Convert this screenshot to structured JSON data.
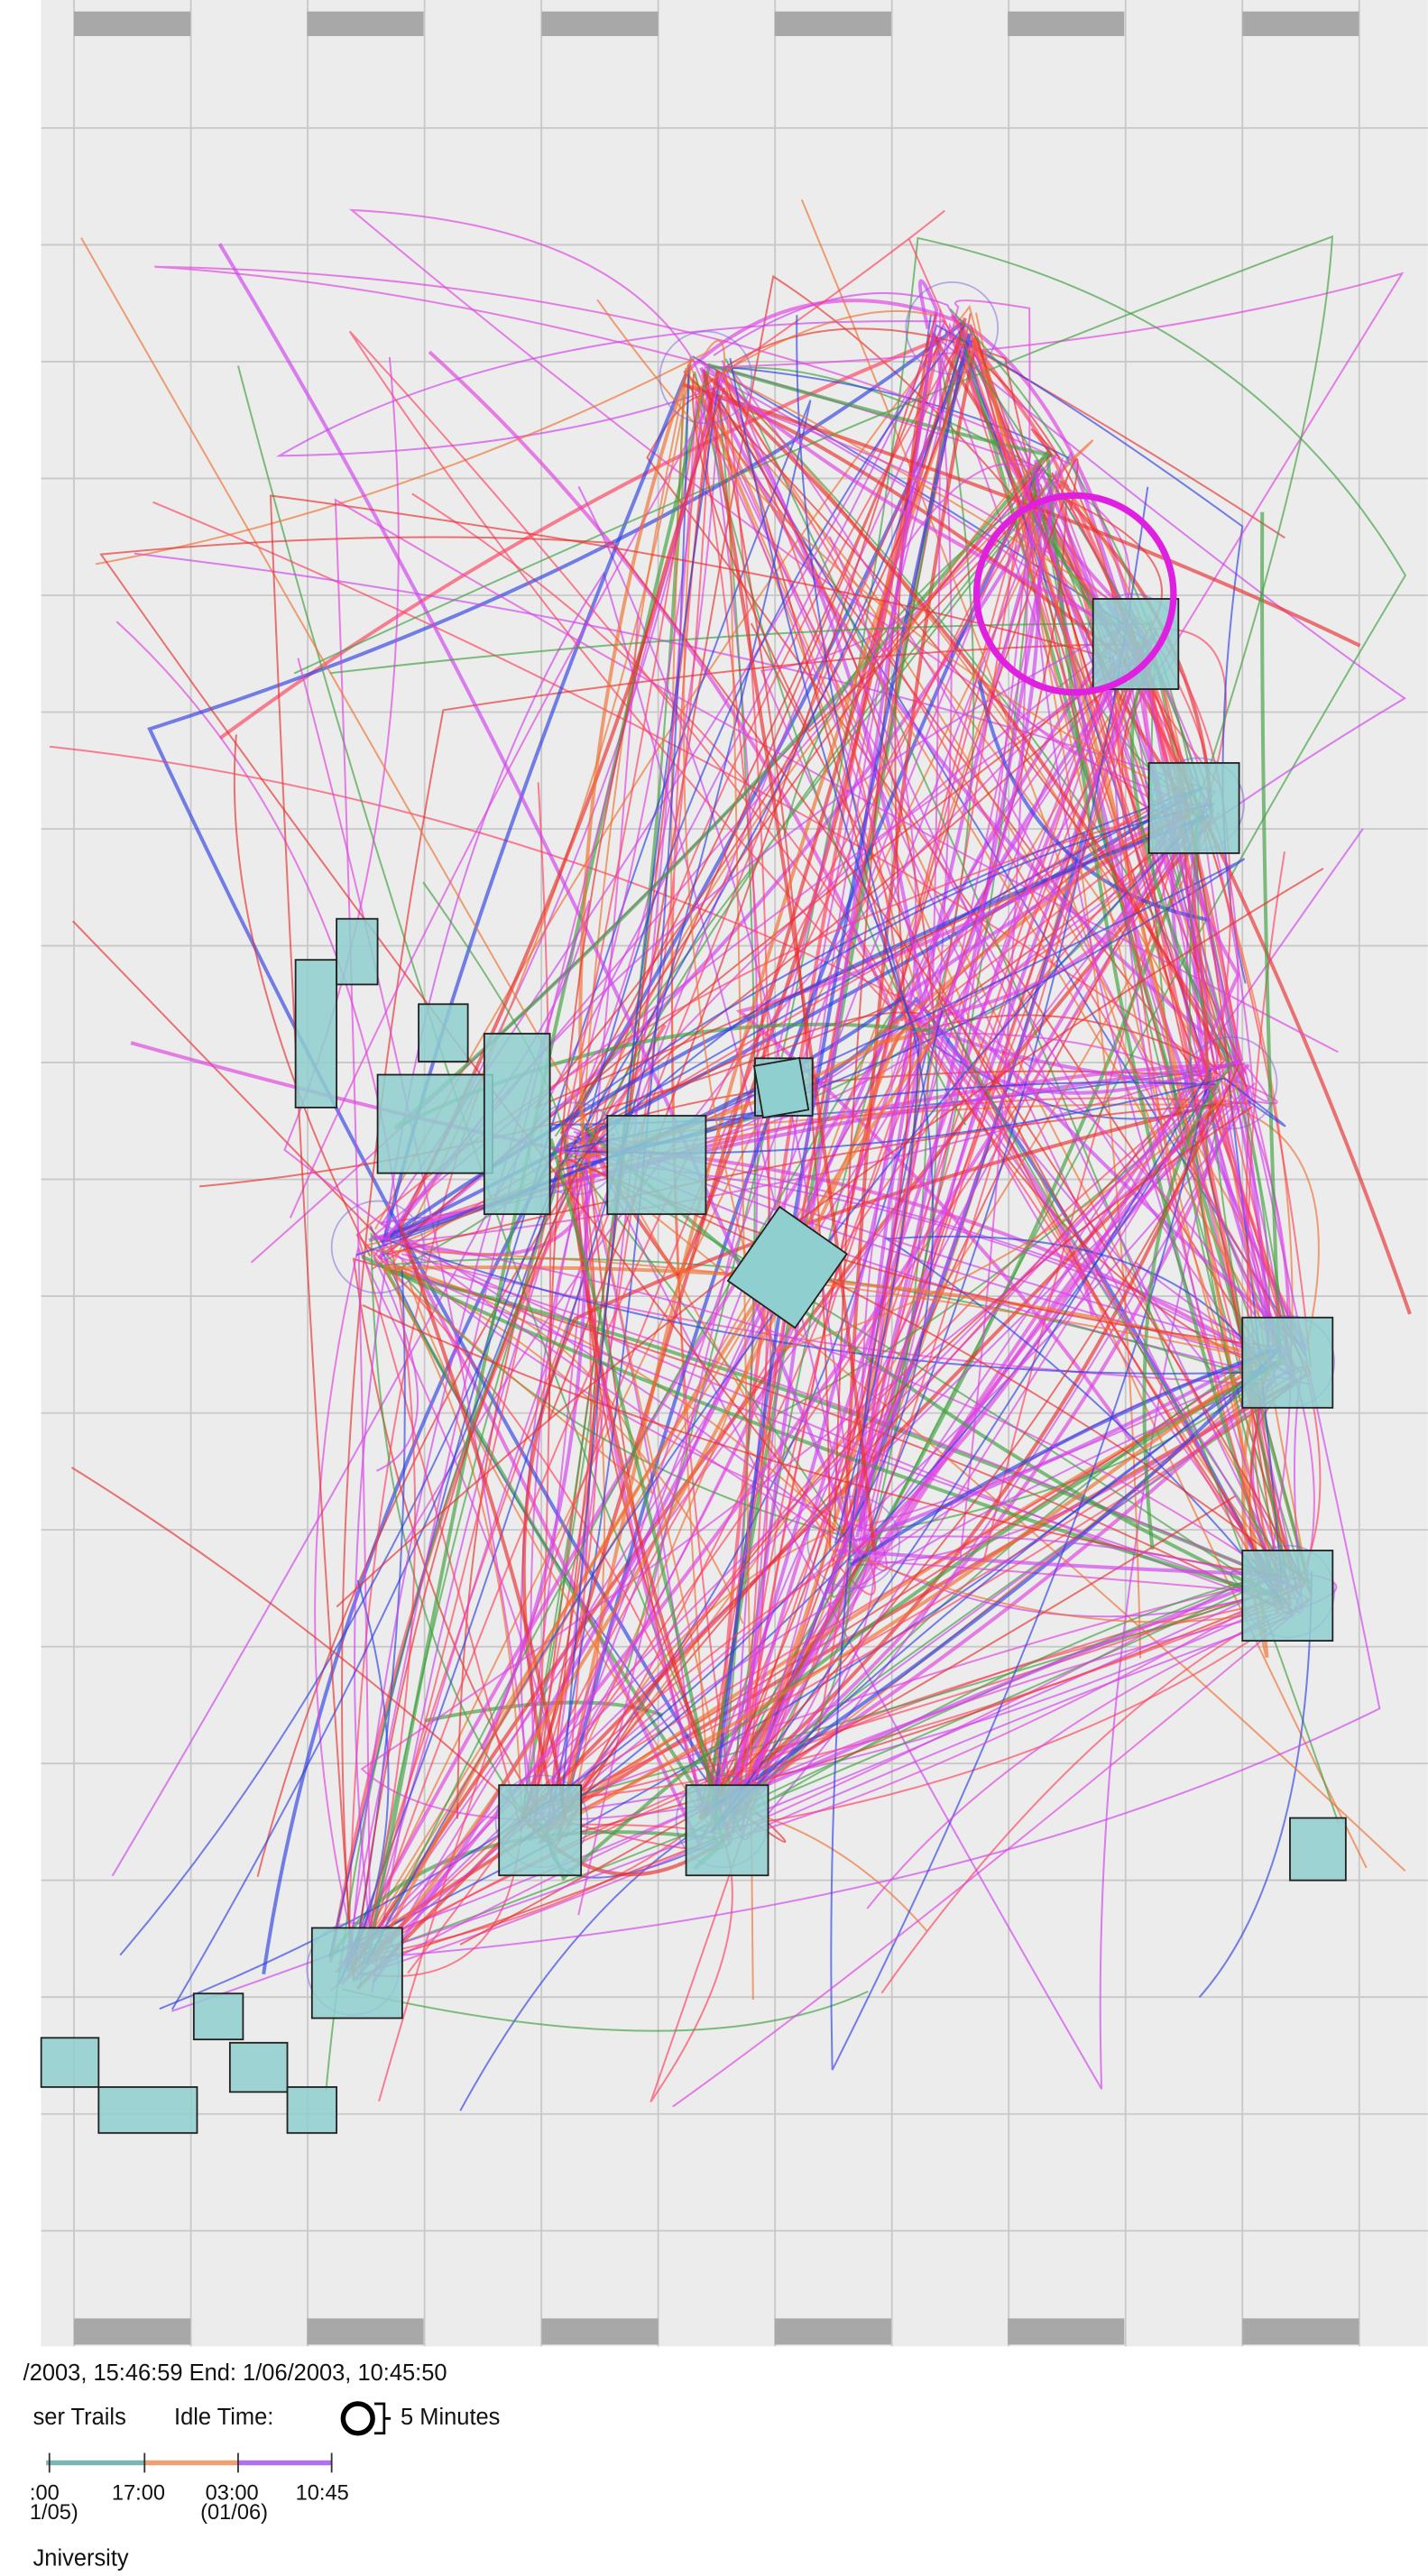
{
  "status": {
    "time_range": "/2003, 15:46:59  End: 1/06/2003, 10:45:50"
  },
  "legend": {
    "layer": "ser Trails",
    "idle_label": "Idle Time:",
    "idle_value": "5 Minutes"
  },
  "timeline": {
    "ticks": [
      ":00",
      "17:00",
      "03:00",
      "10:45"
    ],
    "dates": [
      "1/05)",
      "(01/06)"
    ]
  },
  "location": "Jniversity"
}
